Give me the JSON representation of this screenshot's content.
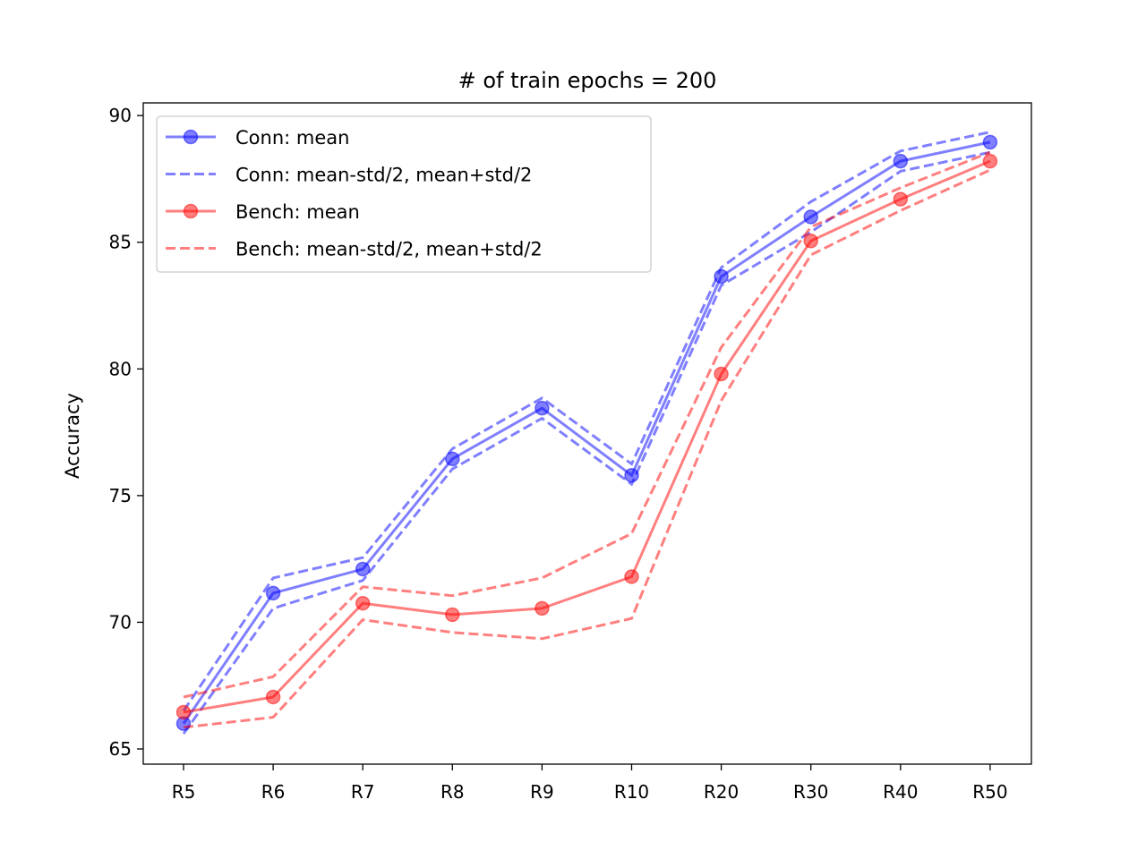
{
  "chart_data": {
    "type": "line",
    "title": "# of train epochs = 200",
    "xlabel": "",
    "ylabel": "Accuracy",
    "categories": [
      "R5",
      "R6",
      "R7",
      "R8",
      "R9",
      "R10",
      "R20",
      "R30",
      "R40",
      "R50"
    ],
    "ylim": [
      64.4,
      90.5
    ],
    "yticks": [
      65,
      70,
      75,
      80,
      85,
      90
    ],
    "grid": false,
    "legend_position": "top-left",
    "series": [
      {
        "name": "Conn: mean",
        "color": "#0000ff",
        "style": "solid-markers",
        "values": [
          66.0,
          71.15,
          72.1,
          76.45,
          78.45,
          75.8,
          83.65,
          86.0,
          88.2,
          88.95
        ]
      },
      {
        "name": "Conn: mean-std/2, mean+std/2",
        "color": "#0000ff",
        "style": "dashed",
        "lower": [
          65.6,
          70.55,
          71.65,
          76.05,
          78.05,
          75.45,
          83.3,
          85.4,
          87.8,
          88.55
        ],
        "upper": [
          66.5,
          71.75,
          72.55,
          76.85,
          78.85,
          76.25,
          84.0,
          86.6,
          88.6,
          89.35
        ]
      },
      {
        "name": "Bench: mean",
        "color": "#ff0000",
        "style": "solid-markers",
        "values": [
          66.45,
          67.05,
          70.75,
          70.3,
          70.55,
          71.8,
          79.8,
          85.05,
          86.7,
          88.2
        ]
      },
      {
        "name": "Bench: mean-std/2, mean+std/2",
        "color": "#ff0000",
        "style": "dashed",
        "lower": [
          65.85,
          66.25,
          70.1,
          69.6,
          69.35,
          70.15,
          78.75,
          84.5,
          86.25,
          87.85
        ],
        "upper": [
          67.05,
          67.85,
          71.4,
          71.05,
          71.75,
          73.5,
          80.85,
          85.6,
          87.15,
          88.55
        ]
      }
    ]
  }
}
